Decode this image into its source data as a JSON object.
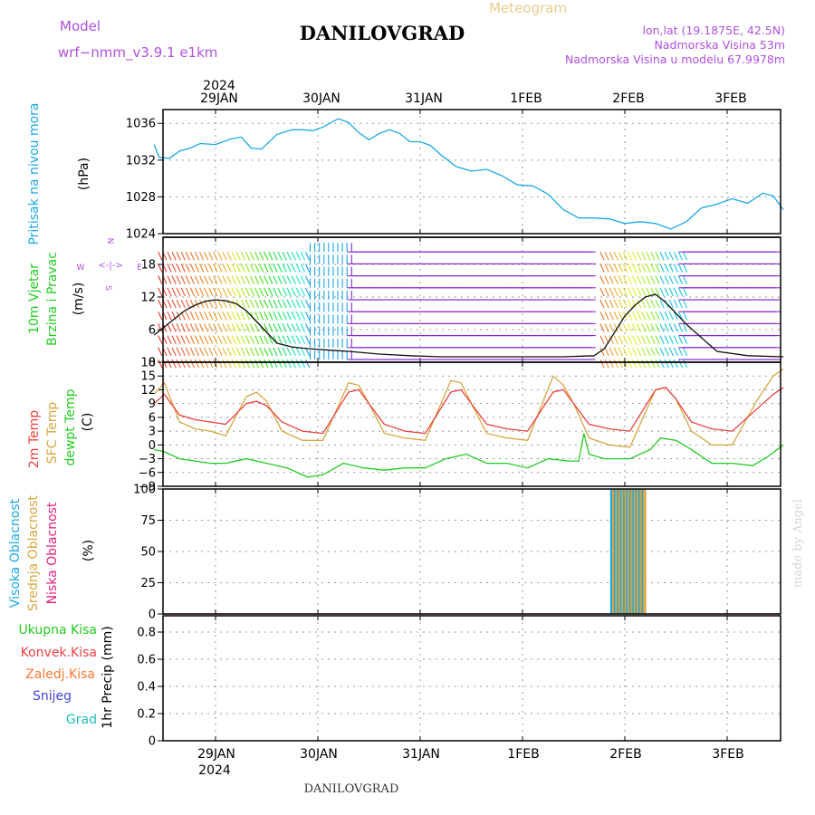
{
  "header": {
    "model_label": "Model",
    "model_name": "wrf−nmm_v3.9.1  e1km",
    "title": "DANILOVGRAD",
    "meteogram": "Meteogram",
    "lonlat": "lon,lat (19.1875E, 42.5N)",
    "elevation": "Nadmorska Visina 53m",
    "model_elevation": "Nadmorska Visina u modelu 67.9978m",
    "footer_title": "DANILOVGRAD",
    "credit": "made by Angel"
  },
  "time_axis": {
    "year": "2024",
    "labels": [
      "29JAN",
      "30JAN",
      "31JAN",
      "1FEB",
      "2FEB",
      "3FEB"
    ]
  },
  "colors": {
    "pressure": "#1ba8e6",
    "temp2m": "#ee4040",
    "sfc_temp": "#d8a640",
    "dewpoint": "#22cc22",
    "high_cloud": "#1ba8e6",
    "mid_cloud": "#d8a640",
    "low_cloud": "#e0207a",
    "total_precip": "#22cc22",
    "conv_precip": "#ee4040",
    "frz_precip": "#ff7733",
    "snow": "#4444dd",
    "hail": "#22bbbb",
    "wind_label": "#22cc22",
    "compass": "#b050e0",
    "grid": "#999999"
  },
  "chart_data": [
    {
      "type": "line",
      "ylabels": [
        "Pritisak na nivou mora",
        "(hPa)"
      ],
      "yticks": [
        "1036",
        "1032",
        "1028",
        "1024"
      ],
      "ylim": [
        1024,
        1037.5
      ],
      "x_unit": "days since 29JAN 00UTC",
      "series": [
        {
          "name": "Pritisak na nivou mora",
          "x": [
            -0.6,
            -0.55,
            -0.45,
            -0.35,
            -0.25,
            -0.15,
            0.0,
            0.15,
            0.25,
            0.35,
            0.45,
            0.6,
            0.75,
            0.85,
            0.95,
            1.05,
            1.2,
            1.3,
            1.4,
            1.5,
            1.6,
            1.7,
            1.8,
            1.9,
            2.0,
            2.1,
            2.2,
            2.35,
            2.5,
            2.65,
            2.8,
            2.95,
            3.1,
            3.25,
            3.4,
            3.55,
            3.7,
            3.85,
            4.0,
            4.15,
            4.3,
            4.45,
            4.6,
            4.75,
            4.9,
            5.05,
            5.2,
            5.35,
            5.45,
            5.55
          ],
          "values": [
            1033.7,
            1032.3,
            1032.2,
            1033.0,
            1033.3,
            1033.8,
            1033.7,
            1034.3,
            1034.5,
            1033.3,
            1033.2,
            1034.8,
            1035.3,
            1035.3,
            1035.2,
            1035.6,
            1036.5,
            1036.1,
            1035.0,
            1034.2,
            1034.9,
            1035.3,
            1034.9,
            1034.0,
            1034.0,
            1033.6,
            1032.6,
            1031.3,
            1030.8,
            1031.0,
            1030.3,
            1029.3,
            1029.2,
            1028.3,
            1026.6,
            1025.7,
            1025.7,
            1025.6,
            1025.1,
            1025.3,
            1025.1,
            1024.5,
            1025.3,
            1026.8,
            1027.2,
            1027.8,
            1027.3,
            1028.4,
            1028.1,
            1026.6
          ]
        }
      ]
    },
    {
      "type": "line",
      "ylabels": [
        "10m Vjetar",
        "Brzina i Pravac",
        "(m/s)"
      ],
      "yticks": [
        "18",
        "12",
        "6",
        "0"
      ],
      "ylim": [
        0,
        23
      ],
      "compass": {
        "n": "N",
        "s": "S",
        "e": "E",
        "w": "W"
      },
      "series": [
        {
          "name": "10m Vjetar",
          "x": [
            -0.6,
            -0.5,
            -0.4,
            -0.3,
            -0.2,
            -0.1,
            0.0,
            0.1,
            0.2,
            0.3,
            0.45,
            0.6,
            0.75,
            0.9,
            1.05,
            1.3,
            1.6,
            1.9,
            2.2,
            2.5,
            2.8,
            3.1,
            3.4,
            3.7,
            3.8,
            3.9,
            4.0,
            4.1,
            4.2,
            4.3,
            4.4,
            4.6,
            4.9,
            5.2,
            5.55
          ],
          "values": [
            5,
            6.5,
            8,
            9.5,
            10.5,
            11.2,
            11.5,
            11.3,
            10.8,
            9.5,
            6.5,
            3.5,
            2.8,
            2.5,
            2.3,
            2.0,
            1.5,
            1.2,
            1.0,
            1.0,
            1.0,
            1.0,
            1.0,
            1.2,
            2.5,
            5.5,
            8.5,
            10.5,
            12,
            12.5,
            11,
            7,
            2,
            1.2,
            1.0
          ]
        }
      ]
    },
    {
      "type": "line",
      "ylabels": [
        "2m Temp",
        "SFC Temp",
        "dewpt Temp",
        "(C)"
      ],
      "yticks": [
        "18",
        "15",
        "12",
        "9",
        "6",
        "3",
        "0",
        "−3",
        "−6",
        "−9"
      ],
      "ylim": [
        -9,
        18
      ],
      "series": [
        {
          "name": "2m Temp",
          "x": [
            -0.6,
            -0.5,
            -0.35,
            -0.2,
            -0.05,
            0.1,
            0.3,
            0.4,
            0.5,
            0.65,
            0.85,
            1.05,
            1.3,
            1.4,
            1.5,
            1.65,
            1.85,
            2.05,
            2.3,
            2.4,
            2.5,
            2.65,
            2.85,
            3.05,
            3.3,
            3.4,
            3.5,
            3.65,
            3.85,
            4.05,
            4.3,
            4.4,
            4.5,
            4.65,
            4.85,
            5.05,
            5.3,
            5.45,
            5.55
          ],
          "values": [
            9,
            11,
            6.5,
            5.5,
            5,
            4.5,
            9,
            9.5,
            8.5,
            5,
            3,
            2.5,
            11.5,
            12,
            9,
            4.5,
            3,
            2.5,
            11.5,
            12,
            9,
            4.5,
            3.5,
            3,
            11.5,
            12,
            9,
            4.5,
            3.5,
            3,
            12,
            12.5,
            10,
            5,
            3.5,
            3,
            8,
            11,
            12.5
          ]
        },
        {
          "name": "SFC Temp",
          "x": [
            -0.6,
            -0.5,
            -0.35,
            -0.2,
            -0.05,
            0.1,
            0.3,
            0.4,
            0.5,
            0.65,
            0.85,
            1.05,
            1.3,
            1.4,
            1.5,
            1.65,
            1.85,
            2.05,
            2.3,
            2.4,
            2.5,
            2.65,
            2.85,
            3.05,
            3.3,
            3.4,
            3.5,
            3.65,
            3.85,
            4.05,
            4.3,
            4.4,
            4.5,
            4.65,
            4.85,
            5.05,
            5.3,
            5.45,
            5.55
          ],
          "values": [
            11,
            13.5,
            5,
            3.5,
            3,
            2,
            10.5,
            11.5,
            9.5,
            3,
            1,
            1,
            13.5,
            13,
            9,
            2.5,
            1.5,
            1,
            14,
            13.5,
            9,
            2.5,
            1.5,
            1,
            15,
            13,
            9,
            1.5,
            0,
            -0.5,
            12,
            12.5,
            10,
            3,
            0,
            0,
            10,
            15,
            16.5
          ]
        },
        {
          "name": "dewpt Temp",
          "x": [
            -0.6,
            -0.5,
            -0.35,
            -0.2,
            -0.05,
            0.1,
            0.3,
            0.5,
            0.7,
            0.9,
            1.05,
            1.25,
            1.45,
            1.65,
            1.85,
            2.05,
            2.25,
            2.45,
            2.65,
            2.85,
            3.05,
            3.25,
            3.45,
            3.55,
            3.6,
            3.65,
            3.8,
            4.05,
            4.25,
            4.35,
            4.5,
            4.65,
            4.85,
            5.05,
            5.25,
            5.4,
            5.55
          ],
          "values": [
            -1,
            -1.5,
            -3,
            -3.5,
            -4,
            -4,
            -3,
            -4,
            -5,
            -7,
            -6.5,
            -4,
            -5,
            -5.5,
            -5,
            -5,
            -3,
            -2,
            -4,
            -4,
            -5,
            -3,
            -3.5,
            -3.5,
            2.5,
            -2,
            -3,
            -3,
            -1,
            1.5,
            1,
            -1,
            -4,
            -4,
            -4.5,
            -2.5,
            0
          ]
        }
      ]
    },
    {
      "type": "bar",
      "ylabels": [
        "Visoka Oblacnost",
        "Srednja Oblacnost",
        "Niska Oblacnost",
        "(%)"
      ],
      "yticks": [
        "100",
        "75",
        "50",
        "25",
        "0"
      ],
      "ylim": [
        0,
        100
      ],
      "series": [
        {
          "name": "Visoka Oblacnost",
          "x": [
            3.87,
            3.9,
            3.93,
            3.96,
            3.99,
            4.02,
            4.05,
            4.08,
            4.11,
            4.14,
            4.17
          ],
          "values": [
            100,
            100,
            100,
            100,
            100,
            100,
            100,
            100,
            100,
            100,
            100
          ]
        },
        {
          "name": "Srednja Oblacnost",
          "x": [
            3.885,
            3.915,
            3.945,
            3.975,
            4.005,
            4.035,
            4.065,
            4.095,
            4.125,
            4.155,
            4.185,
            4.2
          ],
          "values": [
            100,
            100,
            100,
            100,
            100,
            100,
            100,
            100,
            100,
            100,
            100,
            100
          ]
        },
        {
          "name": "Niska Oblacnost",
          "x": [],
          "values": []
        }
      ]
    },
    {
      "type": "line",
      "ylabels": [
        "1hr Precip (mm)"
      ],
      "yticks": [
        "0.8",
        "0.6",
        "0.4",
        "0.2",
        "0"
      ],
      "ylim": [
        0,
        0.92
      ],
      "legend": [
        "Ukupna Kisa",
        "Konvek.Kisa",
        "Zaledj.Kisa",
        "Snijeg",
        "Grad"
      ],
      "series": [
        {
          "name": "Ukupna Kisa",
          "values": []
        },
        {
          "name": "Konvek.Kisa",
          "values": []
        },
        {
          "name": "Zaledj.Kisa",
          "values": []
        },
        {
          "name": "Snijeg",
          "values": []
        },
        {
          "name": "Grad",
          "values": []
        }
      ]
    }
  ]
}
